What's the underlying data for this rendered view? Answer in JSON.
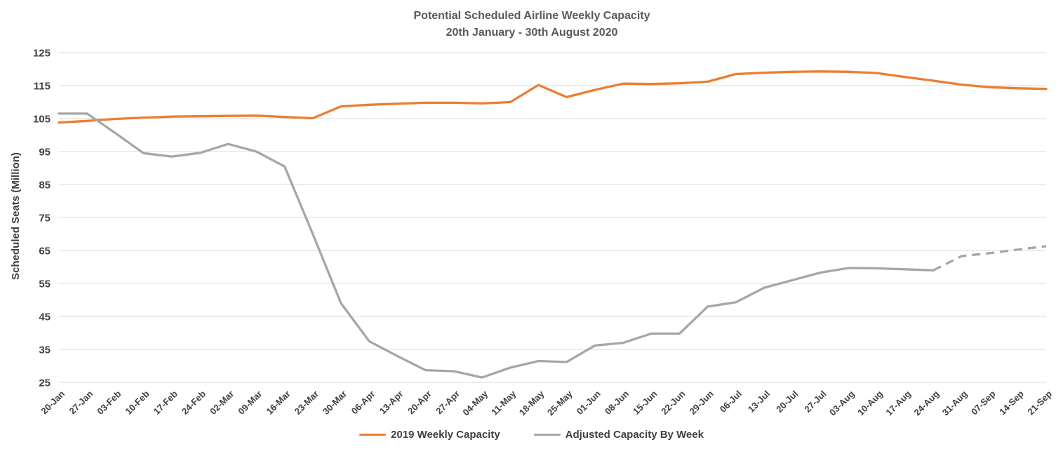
{
  "chart_data": {
    "type": "line",
    "title": "Potential Scheduled Airline Weekly Capacity",
    "subtitle": "20th January - 30th August 2020",
    "xlabel": "",
    "ylabel": "Scheduled Seats (Million)",
    "ylim": [
      25,
      125
    ],
    "ytick_step": 10,
    "yticks": [
      25,
      35,
      45,
      55,
      65,
      75,
      85,
      95,
      105,
      115,
      125
    ],
    "grid": "horizontal-only",
    "gridline_color": "#d9d9d9",
    "text_color": "#404040",
    "title_color": "#595959",
    "legend_position": "bottom",
    "x_label_rotation_deg": 45,
    "categories": [
      "20-Jan",
      "27-Jan",
      "03-Feb",
      "10-Feb",
      "17-Feb",
      "24-Feb",
      "02-Mar",
      "09-Mar",
      "16-Mar",
      "23-Mar",
      "30-Mar",
      "06-Apr",
      "13-Apr",
      "20-Apr",
      "27-Apr",
      "04-May",
      "11-May",
      "18-May",
      "25-May",
      "01-Jun",
      "08-Jun",
      "15-Jun",
      "22-Jun",
      "29-Jun",
      "06-Jul",
      "13-Jul",
      "20-Jul",
      "27-Jul",
      "03-Aug",
      "10-Aug",
      "17-Aug",
      "24-Aug",
      "31-Aug",
      "07-Sep",
      "14-Sep",
      "21-Sep"
    ],
    "series": [
      {
        "name": "2019 Weekly Capacity",
        "color": "#ED7D31",
        "line_style": "solid",
        "values": [
          103.8,
          104.3,
          104.9,
          105.3,
          105.6,
          105.7,
          105.8,
          105.9,
          105.5,
          105.1,
          108.7,
          109.2,
          109.5,
          109.8,
          109.8,
          109.6,
          110,
          115.2,
          111.5,
          113.7,
          115.6,
          115.5,
          115.7,
          116.2,
          118.5,
          118.9,
          119.2,
          119.3,
          119.2,
          118.8,
          117.6,
          116.5,
          115.3,
          114.5,
          114.2,
          114
        ]
      },
      {
        "name": "Adjusted Capacity By Week",
        "color": "#A6A6A6",
        "line_style": "solid-then-dashed",
        "dashed_from_category": "24-Aug",
        "dashed_from_index": 31,
        "values": [
          106.5,
          106.5,
          100.6,
          94.5,
          93.5,
          94.6,
          97.3,
          95,
          90.5,
          70,
          49,
          37.5,
          33,
          28.7,
          28.4,
          26.5,
          29.5,
          31.5,
          31.2,
          36.2,
          37,
          39.8,
          39.8,
          48,
          49.3,
          53.7,
          56,
          58.3,
          59.7,
          59.6,
          59.3,
          59,
          63.3,
          64.2,
          65.3,
          66.3
        ]
      }
    ]
  }
}
